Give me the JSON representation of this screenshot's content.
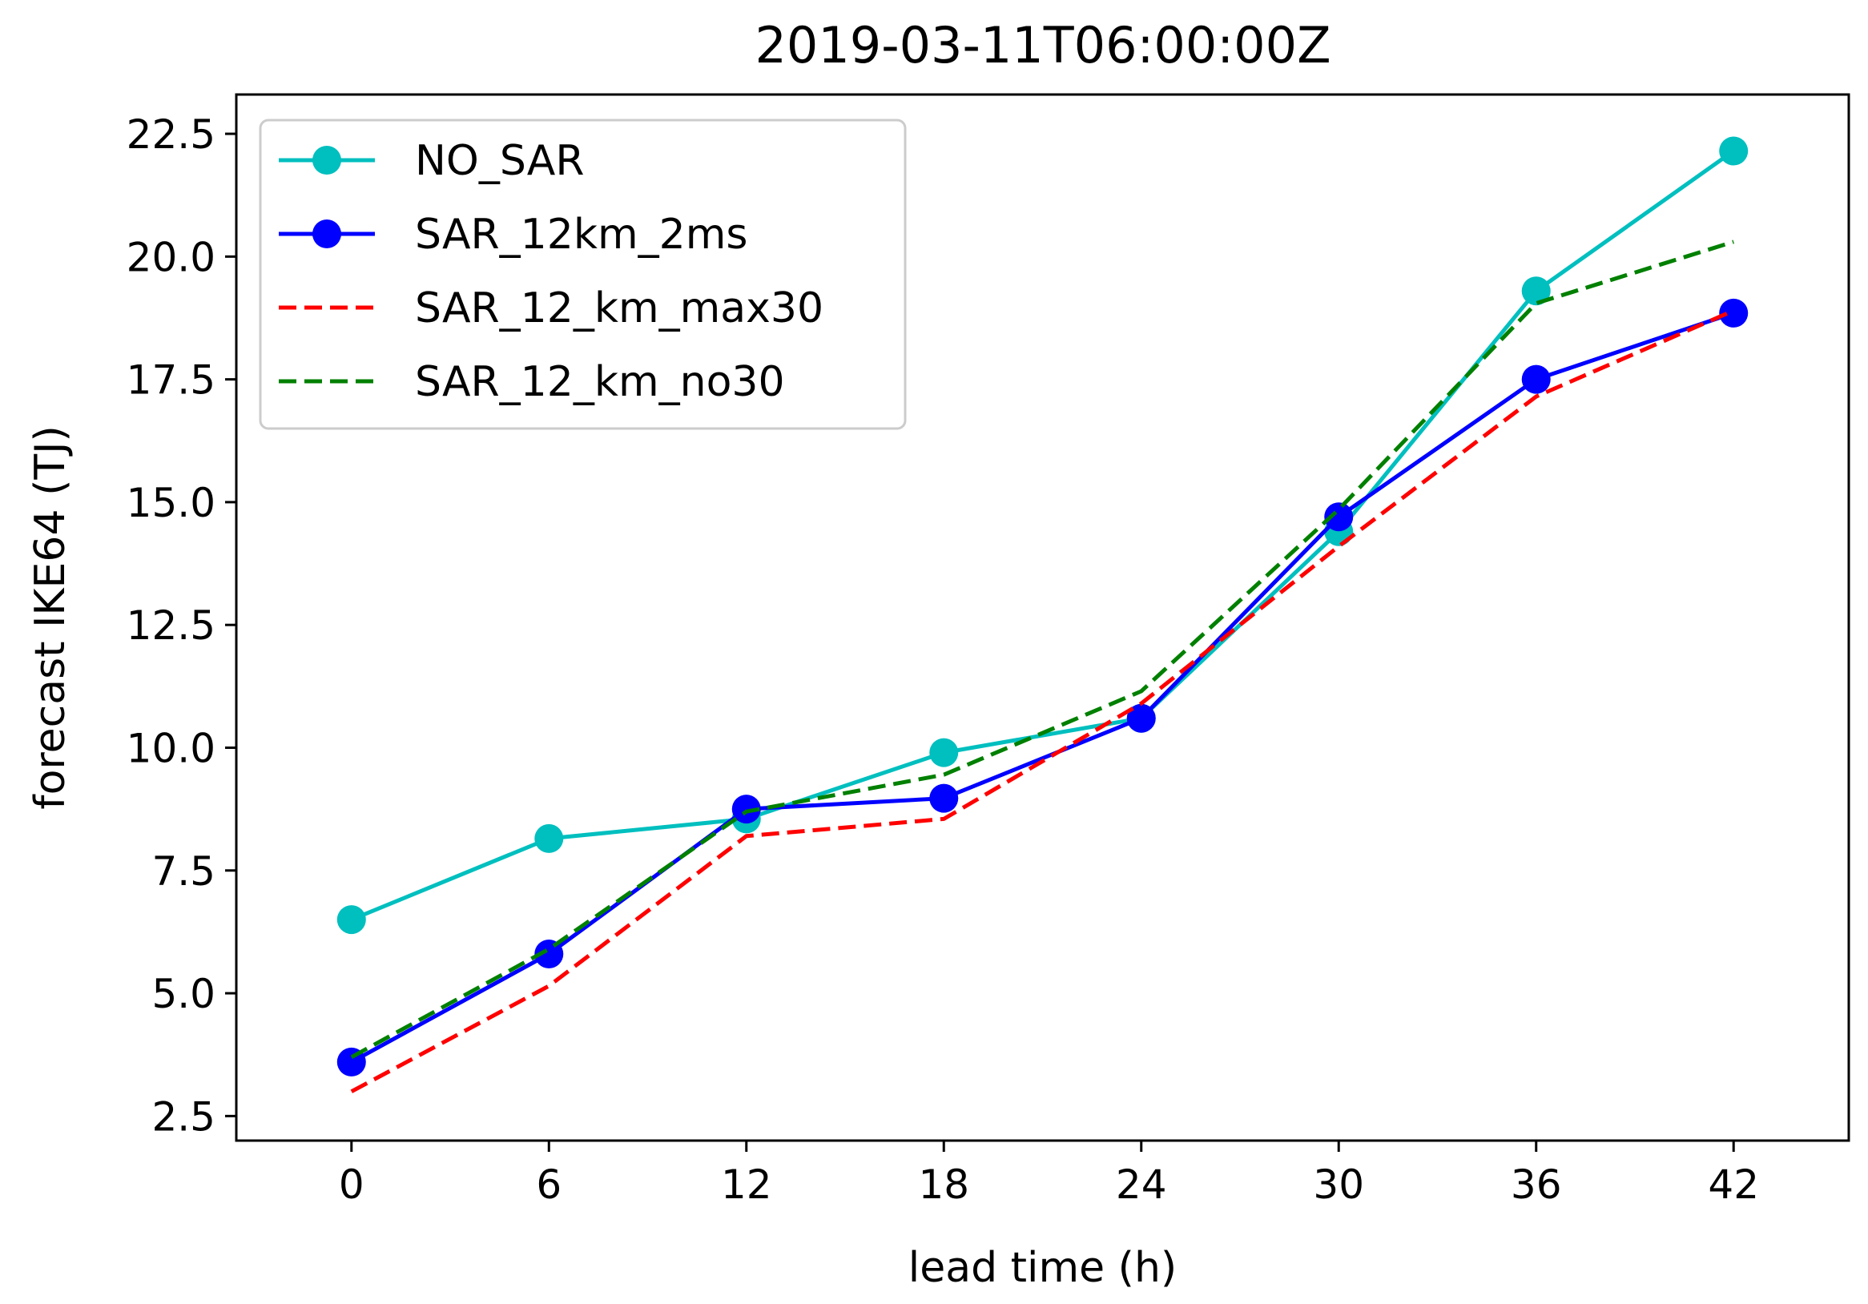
{
  "chart_data": {
    "type": "line",
    "title": "2019-03-11T06:00:00Z",
    "xlabel": "lead time (h)",
    "ylabel": "forecast IKE64 (TJ)",
    "xlim": [
      -3.5,
      45.5
    ],
    "ylim": [
      2.0,
      23.3
    ],
    "x": [
      0,
      6,
      12,
      18,
      24,
      30,
      36,
      42
    ],
    "x_ticks": [
      0,
      6,
      12,
      18,
      24,
      30,
      36,
      42
    ],
    "y_ticks": [
      2.5,
      5.0,
      7.5,
      10.0,
      12.5,
      15.0,
      17.5,
      20.0,
      22.5
    ],
    "y_tick_labels": [
      "2.5",
      "5.0",
      "7.5",
      "10.0",
      "12.5",
      "15.0",
      "17.5",
      "20.0",
      "22.5"
    ],
    "grid": false,
    "legend_position": "top-left",
    "series": [
      {
        "name": "NO_SAR",
        "color": "#00bfbf",
        "style": "solid",
        "marker": "circle",
        "values": [
          6.5,
          8.15,
          8.55,
          9.9,
          10.6,
          14.4,
          19.3,
          22.15
        ]
      },
      {
        "name": "SAR_12km_2ms",
        "color": "#0000ff",
        "style": "solid",
        "marker": "circle",
        "values": [
          3.6,
          5.8,
          8.75,
          8.97,
          10.6,
          14.7,
          17.5,
          18.85
        ]
      },
      {
        "name": "SAR_12_km_max30",
        "color": "#ff0000",
        "style": "dashed",
        "marker": "none",
        "values": [
          3.0,
          5.15,
          8.2,
          8.55,
          10.9,
          14.1,
          17.15,
          18.9
        ]
      },
      {
        "name": "SAR_12_km_no30",
        "color": "#008000",
        "style": "dashed",
        "marker": "none",
        "values": [
          3.7,
          5.9,
          8.7,
          9.45,
          11.15,
          14.85,
          19.05,
          20.3
        ]
      }
    ]
  }
}
